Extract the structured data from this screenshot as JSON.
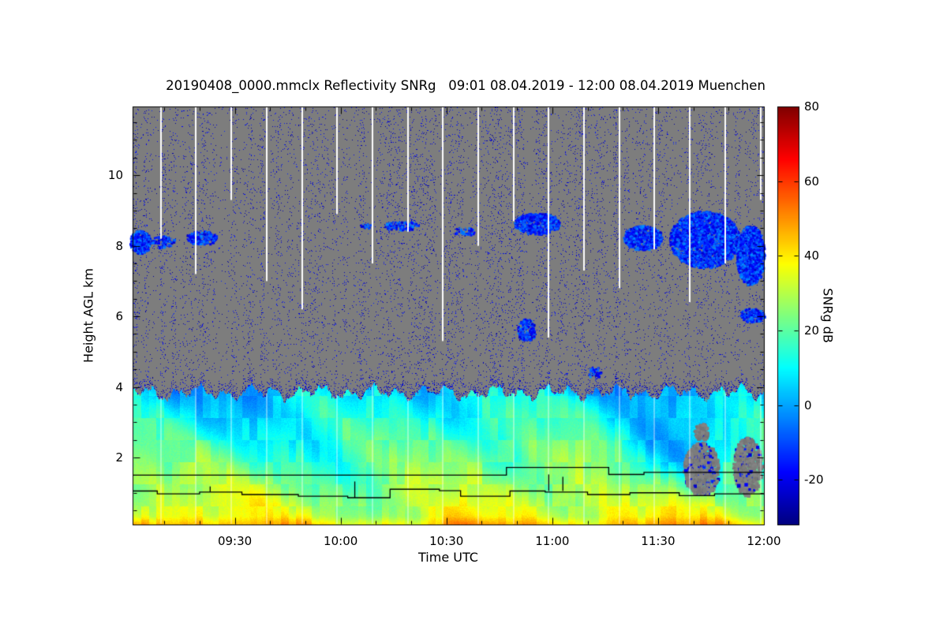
{
  "figure": {
    "background": "#ffffff"
  },
  "chart_data": {
    "type": "heatmap",
    "title": "20190408_0000.mmclx Reflectivity SNRg   09:01 08.04.2019 - 12:00 08.04.2019 Muenchen",
    "xlabel": "Time UTC",
    "ylabel": "Height AGL km",
    "colorbar_label": "SNRg dB",
    "time_start": "09:01 08.04.2019",
    "time_end": "12:00 08.04.2019",
    "station": "Muenchen",
    "x_range_minutes": [
      541,
      720
    ],
    "x_ticks": [
      {
        "label": "09:30",
        "minute": 570
      },
      {
        "label": "10:00",
        "minute": 600
      },
      {
        "label": "10:30",
        "minute": 630
      },
      {
        "label": "11:00",
        "minute": 660
      },
      {
        "label": "11:30",
        "minute": 690
      },
      {
        "label": "12:00",
        "minute": 720
      }
    ],
    "x_minor_step_minutes": 10,
    "y_range_km": [
      0.1,
      11.95
    ],
    "y_ticks_km": [
      2,
      4,
      6,
      8,
      10
    ],
    "y_minor_step_km": 0.5,
    "colorbar": {
      "min": -32,
      "max": 80,
      "ticks": [
        80,
        60,
        40,
        20,
        0,
        -20
      ],
      "colormap": "jet"
    },
    "colors": {
      "no_signal_gray": "#7d7d7d",
      "gap_white": "#ffffff",
      "axis_black": "#000000"
    },
    "noise_speckle": {
      "base_density": 0.04,
      "value_range_db": [
        -30,
        -14
      ]
    },
    "boundary_layer": {
      "top_km_mean": 3.85,
      "surface_value_db": 36,
      "lapse_db_per_km": 7.8
    },
    "surface_hotspots": [
      {
        "minute": 544,
        "amp_db": 6,
        "sigma_min": 10
      },
      {
        "minute": 638,
        "amp_db": 7,
        "sigma_min": 14
      }
    ],
    "low_snr_dips": [
      {
        "minute": 688,
        "km": 2.0,
        "sigma_min": 8,
        "sigma_km": 0.75,
        "amp_db": 14
      },
      {
        "minute": 700,
        "km": 1.6,
        "sigma_min": 5,
        "sigma_km": 0.5,
        "amp_db": 10
      }
    ],
    "gap_streaks": [
      {
        "minute": 549,
        "bottom_km": 8.2
      },
      {
        "minute": 559,
        "bottom_km": 7.2
      },
      {
        "minute": 569,
        "bottom_km": 9.3
      },
      {
        "minute": 579,
        "bottom_km": 7.0
      },
      {
        "minute": 589,
        "bottom_km": 6.2
      },
      {
        "minute": 599,
        "bottom_km": 8.9
      },
      {
        "minute": 609,
        "bottom_km": 7.5
      },
      {
        "minute": 619,
        "bottom_km": 8.4
      },
      {
        "minute": 629,
        "bottom_km": 5.3
      },
      {
        "minute": 639,
        "bottom_km": 8.0
      },
      {
        "minute": 649,
        "bottom_km": 8.7
      },
      {
        "minute": 659,
        "bottom_km": 5.4
      },
      {
        "minute": 669,
        "bottom_km": 7.3
      },
      {
        "minute": 679,
        "bottom_km": 6.8
      },
      {
        "minute": 689,
        "bottom_km": 7.9
      },
      {
        "minute": 699,
        "bottom_km": 6.4
      },
      {
        "minute": 709,
        "bottom_km": 7.5
      },
      {
        "minute": 719,
        "bottom_km": 9.3
      }
    ],
    "cloud_patches": [
      {
        "t0": 540,
        "t1": 546,
        "h0": 7.8,
        "h1": 8.45,
        "density": 0.9
      },
      {
        "t0": 546,
        "t1": 553,
        "h0": 7.95,
        "h1": 8.3,
        "density": 0.35
      },
      {
        "t0": 556,
        "t1": 565,
        "h0": 8.05,
        "h1": 8.45,
        "density": 0.5
      },
      {
        "t0": 605,
        "t1": 609,
        "h0": 8.5,
        "h1": 8.65,
        "density": 0.4
      },
      {
        "t0": 612,
        "t1": 622,
        "h0": 8.45,
        "h1": 8.72,
        "density": 0.45
      },
      {
        "t0": 632,
        "t1": 638,
        "h0": 8.3,
        "h1": 8.55,
        "density": 0.3
      },
      {
        "t0": 649,
        "t1": 662,
        "h0": 8.35,
        "h1": 8.95,
        "density": 0.7
      },
      {
        "t0": 650,
        "t1": 655,
        "h0": 5.3,
        "h1": 5.95,
        "density": 0.5
      },
      {
        "t0": 670,
        "t1": 674,
        "h0": 4.25,
        "h1": 4.6,
        "density": 0.3
      },
      {
        "t0": 680,
        "t1": 691,
        "h0": 7.9,
        "h1": 8.6,
        "density": 0.7
      },
      {
        "t0": 693,
        "t1": 713,
        "h0": 7.4,
        "h1": 9.0,
        "density": 0.75
      },
      {
        "t0": 712,
        "t1": 720,
        "h0": 6.9,
        "h1": 8.6,
        "density": 0.95
      },
      {
        "t0": 713,
        "t1": 720,
        "h0": 5.85,
        "h1": 6.25,
        "density": 0.7
      },
      {
        "t0": 716,
        "t1": 720,
        "h0": 7.25,
        "h1": 7.55,
        "density": 0.5
      }
    ],
    "void_patches": [
      {
        "t0": 697,
        "t1": 707,
        "h0": 0.95,
        "h1": 2.45
      },
      {
        "t0": 711,
        "t1": 719,
        "h0": 0.95,
        "h1": 2.6
      },
      {
        "t0": 700,
        "t1": 704,
        "h0": 2.5,
        "h1": 3.0
      }
    ],
    "melting_line_km": [
      [
        541,
        1.5
      ],
      [
        647,
        1.5
      ],
      [
        647,
        1.72
      ],
      [
        676,
        1.72
      ],
      [
        676,
        1.52
      ],
      [
        686,
        1.52
      ],
      [
        686,
        1.58
      ],
      [
        720,
        1.58
      ]
    ],
    "surface_line_km": [
      [
        541,
        1.05
      ],
      [
        548,
        1.05
      ],
      [
        548,
        0.97
      ],
      [
        560,
        0.97
      ],
      [
        560,
        1.02
      ],
      [
        572,
        1.02
      ],
      [
        572,
        0.95
      ],
      [
        588,
        0.95
      ],
      [
        588,
        0.9
      ],
      [
        602,
        0.9
      ],
      [
        602,
        0.86
      ],
      [
        614,
        0.86
      ],
      [
        614,
        1.1
      ],
      [
        628,
        1.1
      ],
      [
        628,
        1.06
      ],
      [
        634,
        1.06
      ],
      [
        634,
        0.9
      ],
      [
        648,
        0.9
      ],
      [
        648,
        1.05
      ],
      [
        658,
        1.05
      ],
      [
        658,
        1.02
      ],
      [
        670,
        1.02
      ],
      [
        670,
        0.95
      ],
      [
        682,
        0.95
      ],
      [
        682,
        1.0
      ],
      [
        696,
        1.0
      ],
      [
        696,
        0.92
      ],
      [
        706,
        0.92
      ],
      [
        706,
        0.97
      ],
      [
        720,
        0.97
      ]
    ],
    "line_spikes": [
      {
        "minute": 563,
        "from_km": 1.02,
        "to_km": 1.18
      },
      {
        "minute": 604,
        "from_km": 0.86,
        "to_km": 1.32
      },
      {
        "minute": 659,
        "from_km": 1.05,
        "to_km": 1.52
      },
      {
        "minute": 663,
        "from_km": 1.05,
        "to_km": 1.45
      }
    ]
  }
}
